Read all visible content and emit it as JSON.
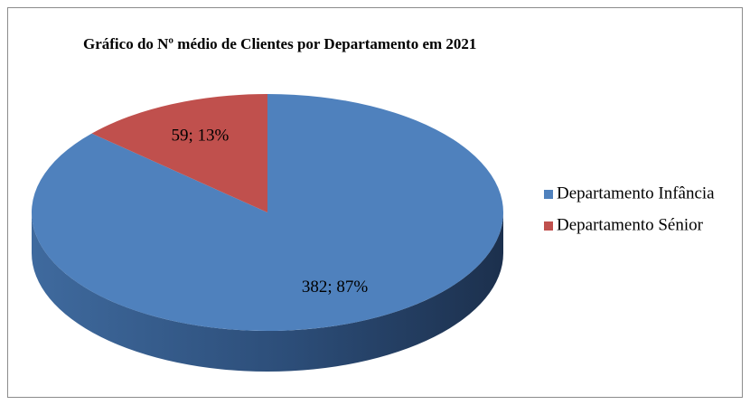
{
  "chart_data": {
    "type": "pie3d",
    "title": "Gráfico do Nº médio de Clientes por Departamento em 2021",
    "categories": [
      "Departamento Infância",
      "Departamento Sénior"
    ],
    "values": [
      382,
      59
    ],
    "value_labels": [
      "382; 87%",
      "59; 13%"
    ],
    "colors": [
      "#4f81bd",
      "#c0504d"
    ],
    "legend": "right"
  }
}
